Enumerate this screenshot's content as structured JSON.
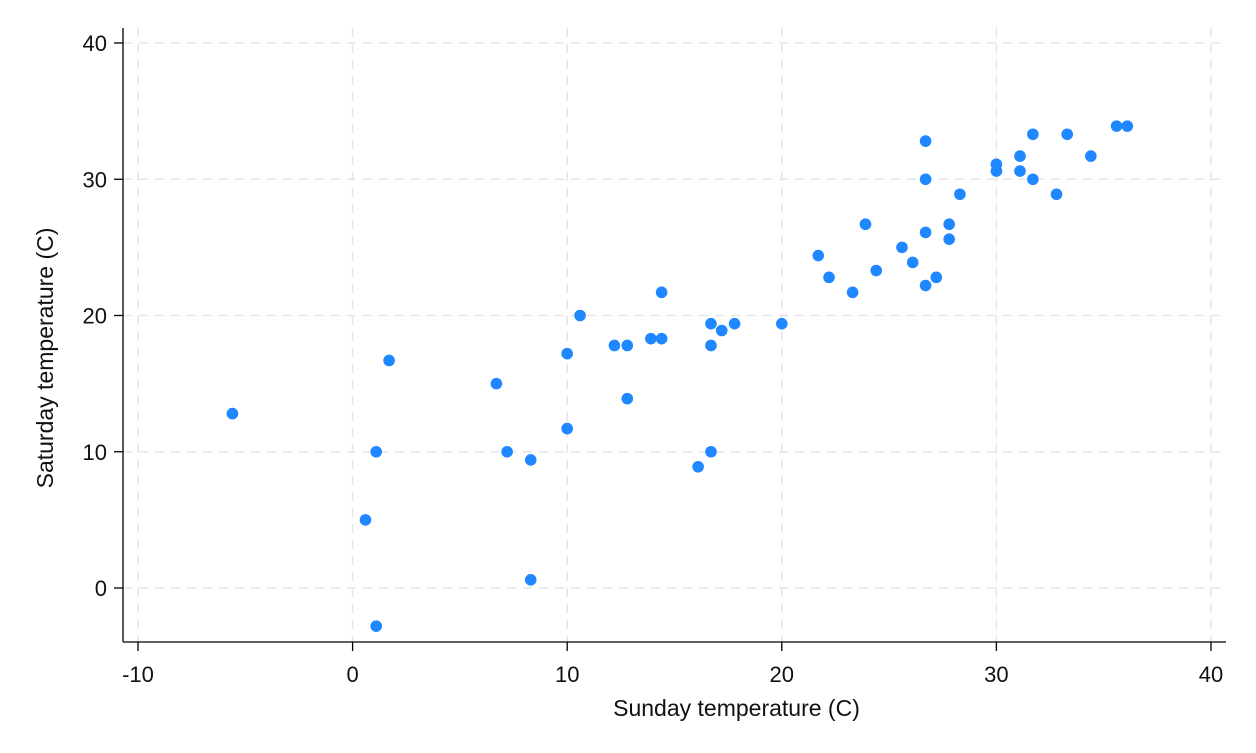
{
  "chart_data": {
    "type": "scatter",
    "title": "",
    "xlabel": "Sunday temperature  (C)",
    "ylabel": "Saturday temperature (C)",
    "xlim": [
      -10,
      40
    ],
    "ylim": [
      -4,
      41
    ],
    "xticks": [
      -10,
      0,
      10,
      20,
      30,
      40
    ],
    "xtick_labels": [
      "-10",
      "0",
      "10",
      "20",
      "30",
      "40"
    ],
    "yticks": [
      0,
      10,
      20,
      30,
      40
    ],
    "ytick_labels": [
      "0",
      "10",
      "20",
      "30",
      "40"
    ],
    "grid": true,
    "legend": "none",
    "series": [
      {
        "color": "#1f87ff",
        "points": [
          [
            -5.6,
            12.8
          ],
          [
            0.6,
            5.0
          ],
          [
            1.1,
            10.0
          ],
          [
            1.1,
            -2.8
          ],
          [
            1.7,
            16.7
          ],
          [
            6.7,
            15.0
          ],
          [
            7.2,
            10.0
          ],
          [
            8.3,
            9.4
          ],
          [
            8.3,
            0.6
          ],
          [
            10.0,
            17.2
          ],
          [
            10.0,
            11.7
          ],
          [
            10.6,
            20.0
          ],
          [
            12.2,
            17.8
          ],
          [
            12.8,
            17.8
          ],
          [
            12.8,
            13.9
          ],
          [
            13.9,
            18.3
          ],
          [
            14.4,
            18.3
          ],
          [
            14.4,
            21.7
          ],
          [
            16.1,
            8.9
          ],
          [
            16.7,
            19.4
          ],
          [
            16.7,
            17.8
          ],
          [
            16.7,
            10.0
          ],
          [
            17.2,
            18.9
          ],
          [
            17.8,
            19.4
          ],
          [
            20.0,
            19.4
          ],
          [
            21.7,
            24.4
          ],
          [
            22.2,
            22.8
          ],
          [
            23.3,
            21.7
          ],
          [
            23.9,
            26.7
          ],
          [
            24.4,
            23.3
          ],
          [
            25.6,
            25.0
          ],
          [
            26.1,
            23.9
          ],
          [
            26.7,
            32.8
          ],
          [
            26.7,
            30.0
          ],
          [
            26.7,
            26.1
          ],
          [
            26.7,
            22.2
          ],
          [
            27.2,
            22.8
          ],
          [
            27.8,
            26.7
          ],
          [
            27.8,
            25.6
          ],
          [
            28.3,
            28.9
          ],
          [
            30.0,
            31.1
          ],
          [
            30.0,
            30.6
          ],
          [
            31.1,
            31.7
          ],
          [
            31.1,
            30.6
          ],
          [
            31.7,
            33.3
          ],
          [
            31.7,
            30.0
          ],
          [
            32.8,
            28.9
          ],
          [
            33.3,
            33.3
          ],
          [
            34.4,
            31.7
          ],
          [
            35.6,
            33.9
          ],
          [
            36.1,
            33.9
          ]
        ]
      }
    ]
  }
}
